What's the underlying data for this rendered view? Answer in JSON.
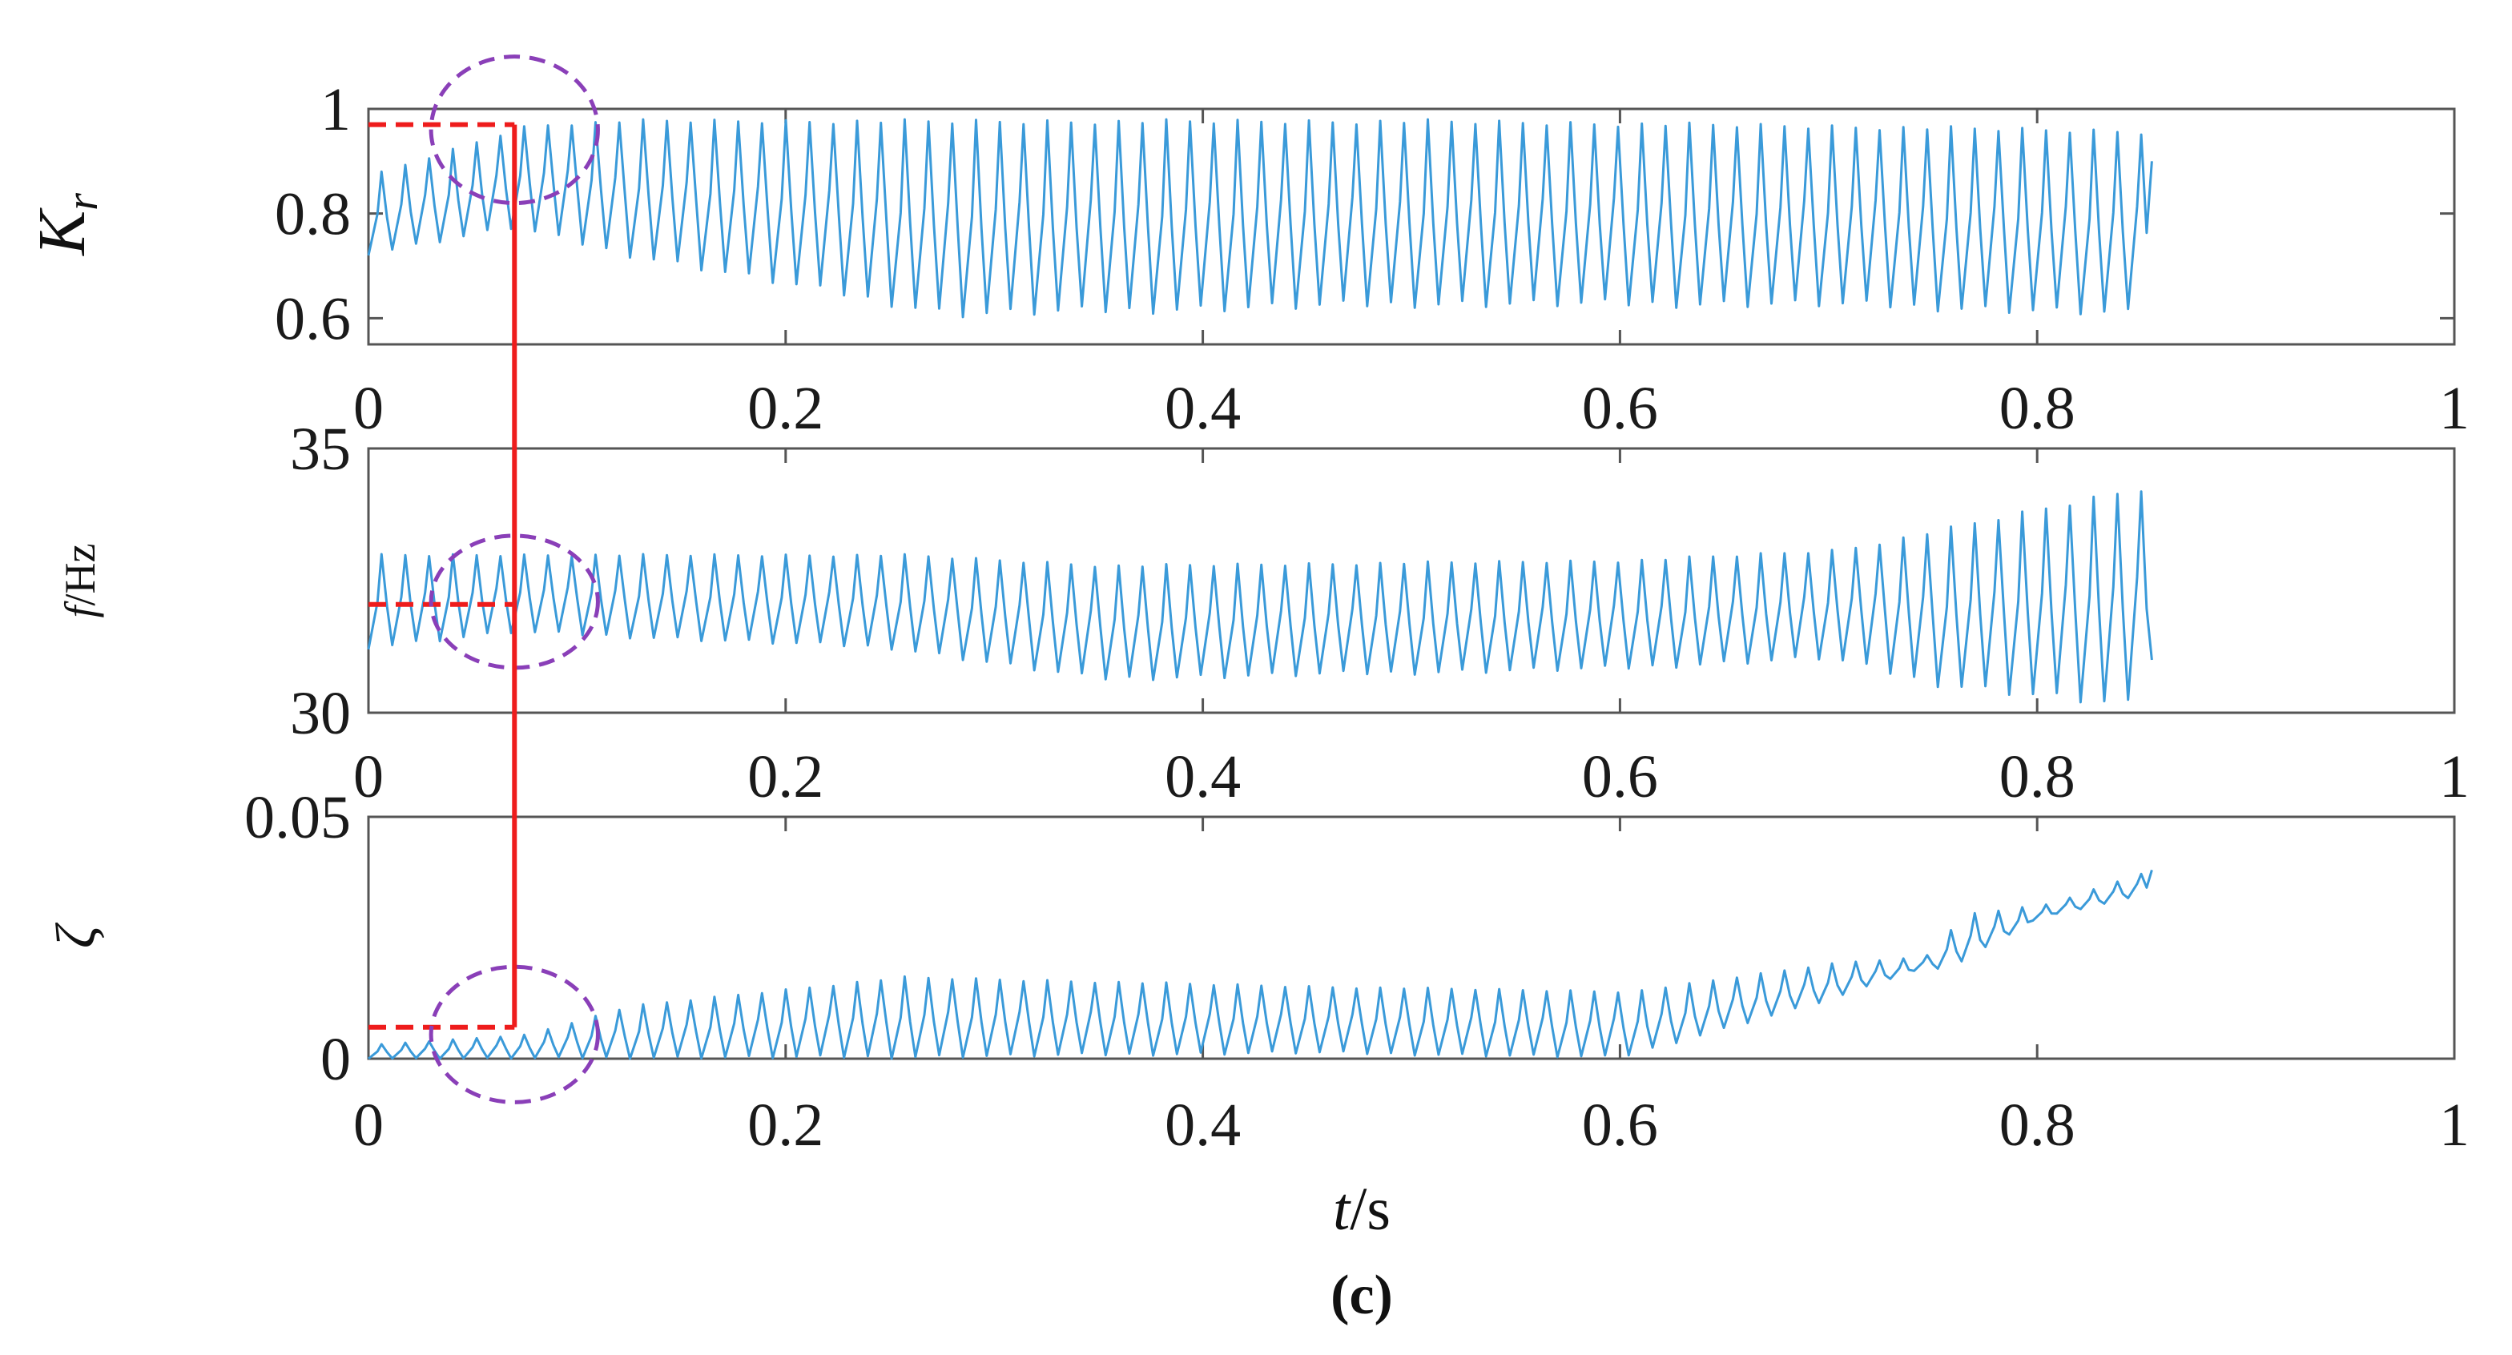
{
  "figure_label": "(c)",
  "colors": {
    "series": "#3a9ad9",
    "marker": "#ee1c1c",
    "highlight": "#8a3fb8",
    "axis": "#555555"
  },
  "chart_data": [
    {
      "type": "line",
      "ylabel_main": "K",
      "ylabel_sub": "r",
      "xlim": [
        0,
        1
      ],
      "ylim": [
        0.55,
        1.0
      ],
      "xticks": [
        "0",
        "0.2",
        "0.4",
        "0.6",
        "0.8",
        "1"
      ],
      "yticks": [
        {
          "value": 0.6,
          "label": "0.6"
        },
        {
          "value": 0.8,
          "label": "0.8"
        },
        {
          "value": 1.0,
          "label": "1"
        }
      ],
      "grid": false,
      "series": [
        {
          "x_start": 0,
          "x_end": 0.855,
          "cycles": 75,
          "segments": [
            {
              "x": 0.0,
              "low": 0.72,
              "high": 0.88
            },
            {
              "x": 0.07,
              "low": 0.77,
              "high": 0.97
            },
            {
              "x": 0.12,
              "low": 0.72,
              "high": 0.98
            },
            {
              "x": 0.28,
              "low": 0.6,
              "high": 0.98
            },
            {
              "x": 0.5,
              "low": 0.62,
              "high": 0.98
            },
            {
              "x": 0.7,
              "low": 0.62,
              "high": 0.97
            },
            {
              "x": 0.855,
              "low": 0.6,
              "high": 0.96
            }
          ],
          "final_value": 0.9
        }
      ],
      "marker": {
        "x": 0.07,
        "y": 0.97
      },
      "highlight": {
        "x": 0.07,
        "y": 0.96,
        "rx": 0.04,
        "ry": 0.14
      }
    },
    {
      "type": "line",
      "ylabel_main": "f",
      "ylabel_sub": "/Hz",
      "xlim": [
        0,
        1
      ],
      "ylim": [
        30,
        35
      ],
      "xticks": [
        "0",
        "0.2",
        "0.4",
        "0.6",
        "0.8",
        "1"
      ],
      "yticks": [
        {
          "value": 30,
          "label": "30"
        },
        {
          "value": 35,
          "label": "35"
        }
      ],
      "grid": false,
      "series": [
        {
          "x_start": 0,
          "x_end": 0.855,
          "cycles": 75,
          "segments": [
            {
              "x": 0.0,
              "low": 31.2,
              "high": 33.0
            },
            {
              "x": 0.07,
              "low": 31.5,
              "high": 33.0
            },
            {
              "x": 0.25,
              "low": 31.2,
              "high": 33.0
            },
            {
              "x": 0.35,
              "low": 30.6,
              "high": 32.8
            },
            {
              "x": 0.6,
              "low": 30.8,
              "high": 32.9
            },
            {
              "x": 0.7,
              "low": 31.0,
              "high": 33.1
            },
            {
              "x": 0.75,
              "low": 30.5,
              "high": 33.5
            },
            {
              "x": 0.855,
              "low": 30.0,
              "high": 34.4
            }
          ],
          "final_value": 31.0
        }
      ],
      "marker": {
        "x": 0.07,
        "y": 32.05
      },
      "highlight": {
        "x": 0.07,
        "y": 32.1,
        "rx": 0.04,
        "ry": 1.25
      }
    },
    {
      "type": "line",
      "ylabel_main": "ζ",
      "ylabel_sub": "",
      "xlabel_main": "t",
      "xlabel_sub": "/s",
      "xlim": [
        0,
        1
      ],
      "ylim": [
        0,
        0.05
      ],
      "xticks": [
        "0",
        "0.2",
        "0.4",
        "0.6",
        "0.8",
        "1"
      ],
      "yticks": [
        {
          "value": 0,
          "label": "0"
        },
        {
          "value": 0.05,
          "label": "0.05"
        }
      ],
      "grid": false,
      "series": [
        {
          "x_start": 0,
          "x_end": 0.855,
          "cycles": 75,
          "segments": [
            {
              "x": 0.0,
              "low": 0.0,
              "high": 0.003
            },
            {
              "x": 0.07,
              "low": 0.0,
              "high": 0.005
            },
            {
              "x": 0.12,
              "low": 0.0,
              "high": 0.011
            },
            {
              "x": 0.25,
              "low": 0.0,
              "high": 0.017
            },
            {
              "x": 0.45,
              "low": 0.001,
              "high": 0.015
            },
            {
              "x": 0.6,
              "low": 0.0,
              "high": 0.014
            },
            {
              "x": 0.7,
              "low": 0.012,
              "high": 0.02
            },
            {
              "x": 0.74,
              "low": 0.018,
              "high": 0.021
            },
            {
              "x": 0.76,
              "low": 0.019,
              "high": 0.03
            },
            {
              "x": 0.8,
              "low": 0.029,
              "high": 0.032
            },
            {
              "x": 0.855,
              "low": 0.034,
              "high": 0.04
            }
          ],
          "final_value": 0.039
        }
      ],
      "marker": {
        "x": 0.07,
        "y": 0.0065
      },
      "highlight": {
        "x": 0.07,
        "y": 0.005,
        "rx": 0.04,
        "ry": 0.014
      }
    }
  ]
}
